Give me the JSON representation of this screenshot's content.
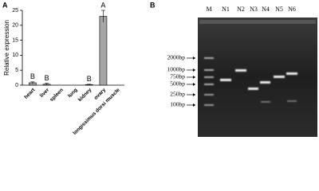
{
  "chart_data": {
    "type": "bar",
    "panel_label": "A",
    "y_label": "Relative expression",
    "categories": [
      "heart",
      "liver",
      "spleen",
      "lung",
      "kidney",
      "ovary",
      "longissimus dorsi muscle"
    ],
    "values": [
      0.8,
      0.3,
      0,
      0,
      0.2,
      23,
      0
    ],
    "errors": [
      0.3,
      0.3,
      0,
      0,
      0.1,
      2,
      0
    ],
    "significance_letters": [
      "B",
      "B",
      null,
      null,
      "B",
      "A",
      null
    ],
    "color": "#a6a6a6",
    "ylim": [
      0,
      25
    ],
    "yticks": [
      0,
      5,
      10,
      15,
      20,
      25
    ]
  },
  "gel": {
    "panel_label": "B",
    "lanes": [
      "M",
      "N1",
      "N2",
      "N3",
      "N4",
      "N5",
      "N6"
    ],
    "markers": [
      "2000bp",
      "1000bp",
      "750bp",
      "500bp",
      "250bp",
      "100bp"
    ]
  }
}
